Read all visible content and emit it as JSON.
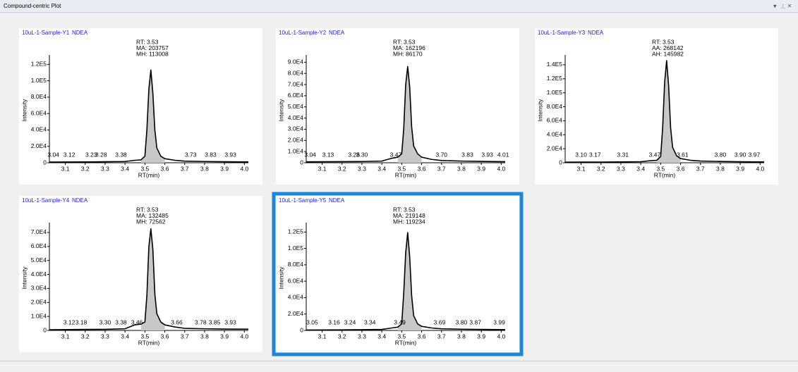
{
  "window_title": "Compound-centric Plot",
  "chart_data": [
    {
      "type": "line",
      "title": "10uL-1-Sample-Y1",
      "compound": "NDEA",
      "annotations": [
        "RT: 3.53",
        "MA: 203757",
        "MH: 113008"
      ],
      "xlabel": "RT(min)",
      "ylabel": "Intensity",
      "color": "#000000",
      "area_color": "#c8c8c8",
      "selected": false,
      "x": [
        3.02,
        3.1,
        3.2,
        3.3,
        3.4,
        3.45,
        3.48,
        3.5,
        3.51,
        3.52,
        3.53,
        3.54,
        3.55,
        3.56,
        3.58,
        3.6,
        3.65,
        3.7,
        3.8,
        3.9,
        4.0,
        4.02
      ],
      "values": [
        800,
        900,
        1000,
        1200,
        1500,
        3000,
        3500,
        8000,
        40000,
        90000,
        113008,
        85000,
        40000,
        18000,
        8000,
        5000,
        3000,
        2000,
        1500,
        1200,
        1000,
        1000
      ],
      "peak_labels": [
        3.04,
        3.12,
        3.23,
        3.28,
        3.38,
        3.73,
        3.83,
        3.93
      ],
      "xlim": [
        3.02,
        4.02
      ],
      "xticks": [
        3.1,
        3.2,
        3.3,
        3.4,
        3.5,
        3.6,
        3.7,
        3.8,
        3.9,
        {
          "value": 4,
          "label": "4.0"
        }
      ],
      "ylim": [
        0,
        128000
      ],
      "yticks": [
        0,
        {
          "value": 20000,
          "label": "2.0E4"
        },
        {
          "value": 40000,
          "label": "4.0E4"
        },
        {
          "value": 60000,
          "label": "6.0E4"
        },
        {
          "value": 80000,
          "label": "8.0E4"
        },
        {
          "value": 100000,
          "label": "1.0E5"
        },
        {
          "value": 120000,
          "label": "1.2E5"
        }
      ]
    },
    {
      "type": "line",
      "title": "10uL-1-Sample-Y2",
      "compound": "NDEA",
      "annotations": [
        "RT: 3.53",
        "MA: 162196",
        "MH: 86170"
      ],
      "xlabel": "RT(min)",
      "ylabel": "Intensity",
      "color": "#000000",
      "area_color": "#c8c8c8",
      "selected": false,
      "x": [
        3.02,
        3.1,
        3.2,
        3.3,
        3.4,
        3.45,
        3.48,
        3.5,
        3.51,
        3.52,
        3.53,
        3.54,
        3.55,
        3.56,
        3.58,
        3.6,
        3.65,
        3.7,
        3.8,
        3.9,
        4.0,
        4.02
      ],
      "values": [
        800,
        900,
        1000,
        1100,
        1500,
        4000,
        5000,
        8000,
        30000,
        70000,
        86170,
        68000,
        32000,
        15000,
        8000,
        5000,
        3000,
        2000,
        1500,
        1200,
        1000,
        1000
      ],
      "peak_labels": [
        3.04,
        3.13,
        3.26,
        {
          "value": 3.3,
          "label": "3.30"
        },
        3.47,
        {
          "value": 3.7,
          "label": "3.70"
        },
        3.83,
        3.93,
        4.01
      ],
      "xlim": [
        3.02,
        4.02
      ],
      "xticks": [
        3.1,
        3.2,
        3.3,
        3.4,
        3.5,
        3.6,
        3.7,
        3.8,
        3.9,
        {
          "value": 4,
          "label": "4.0"
        }
      ],
      "ylim": [
        0,
        94000
      ],
      "yticks": [
        0,
        {
          "value": 10000,
          "label": "1.0E4"
        },
        {
          "value": 20000,
          "label": "2.0E4"
        },
        {
          "value": 30000,
          "label": "3.0E4"
        },
        {
          "value": 40000,
          "label": "4.0E4"
        },
        {
          "value": 50000,
          "label": "5.0E4"
        },
        {
          "value": 60000,
          "label": "6.0E4"
        },
        {
          "value": 70000,
          "label": "7.0E4"
        },
        {
          "value": 80000,
          "label": "8.0E4"
        },
        {
          "value": 90000,
          "label": "9.0E4"
        }
      ]
    },
    {
      "type": "line",
      "title": "10uL-1-Sample-Y3",
      "compound": "NDEA",
      "annotations": [
        "RT: 3.53",
        "AA: 268142",
        "AH: 145982"
      ],
      "xlabel": "RT(min)",
      "ylabel": "Intensity",
      "color": "#000000",
      "area_color": "#c8c8c8",
      "selected": false,
      "x": [
        3.02,
        3.1,
        3.2,
        3.3,
        3.4,
        3.45,
        3.48,
        3.5,
        3.51,
        3.52,
        3.53,
        3.54,
        3.55,
        3.56,
        3.58,
        3.6,
        3.65,
        3.7,
        3.8,
        3.9,
        4.0,
        4.02
      ],
      "values": [
        800,
        900,
        1000,
        1200,
        1500,
        3000,
        3500,
        9000,
        50000,
        115000,
        145982,
        110000,
        50000,
        22000,
        10000,
        6000,
        3500,
        2500,
        1800,
        1400,
        1200,
        1200
      ],
      "peak_labels": [
        {
          "value": 3.1,
          "label": "3.10"
        },
        3.17,
        3.31,
        3.47,
        3.61,
        {
          "value": 3.8,
          "label": "3.80"
        },
        {
          "value": 3.9,
          "label": "3.90"
        },
        3.97
      ],
      "xlim": [
        3.02,
        4.02
      ],
      "xticks": [
        3.1,
        3.2,
        3.3,
        3.4,
        3.5,
        3.6,
        3.7,
        3.8,
        3.9,
        {
          "value": 4,
          "label": "4.0"
        }
      ],
      "ylim": [
        0,
        150000
      ],
      "yticks": [
        0,
        {
          "value": 20000,
          "label": "2.0E4"
        },
        {
          "value": 40000,
          "label": "4.0E4"
        },
        {
          "value": 60000,
          "label": "6.0E4"
        },
        {
          "value": 80000,
          "label": "8.0E4"
        },
        {
          "value": 100000,
          "label": "1.0E5"
        },
        {
          "value": 120000,
          "label": "1.2E5"
        },
        {
          "value": 140000,
          "label": "1.4E5"
        }
      ]
    },
    {
      "type": "line",
      "title": "10uL-1-Sample-Y4",
      "compound": "NDEA",
      "annotations": [
        "RT: 3.53",
        "MA: 132485",
        "MH: 72562"
      ],
      "xlabel": "RT(min)",
      "ylabel": "Intensity",
      "color": "#000000",
      "area_color": "#c8c8c8",
      "selected": false,
      "x": [
        3.02,
        3.1,
        3.2,
        3.3,
        3.4,
        3.45,
        3.48,
        3.5,
        3.51,
        3.52,
        3.53,
        3.54,
        3.55,
        3.56,
        3.58,
        3.6,
        3.65,
        3.7,
        3.8,
        3.9,
        4.0,
        4.02
      ],
      "values": [
        500,
        600,
        700,
        800,
        1200,
        4000,
        4500,
        6000,
        25000,
        60000,
        72562,
        58000,
        26000,
        12000,
        6000,
        4000,
        2500,
        1500,
        1200,
        1000,
        900,
        900
      ],
      "peak_labels": [
        3.12,
        3.18,
        {
          "value": 3.3,
          "label": "3.30"
        },
        3.38,
        3.46,
        3.66,
        3.78,
        3.85,
        3.93
      ],
      "xlim": [
        3.02,
        4.02
      ],
      "xticks": [
        3.1,
        3.2,
        3.3,
        3.4,
        3.5,
        3.6,
        3.7,
        3.8,
        3.9,
        {
          "value": 4,
          "label": "4.0"
        }
      ],
      "ylim": [
        0,
        75000
      ],
      "yticks": [
        0,
        {
          "value": 10000,
          "label": "1.0E4"
        },
        {
          "value": 20000,
          "label": "2.0E4"
        },
        {
          "value": 30000,
          "label": "3.0E4"
        },
        {
          "value": 40000,
          "label": "4.0E4"
        },
        {
          "value": 50000,
          "label": "5.0E4"
        },
        {
          "value": 60000,
          "label": "6.0E4"
        },
        {
          "value": 70000,
          "label": "7.0E4"
        }
      ]
    },
    {
      "type": "line",
      "title": "10uL-1-Sample-Y5",
      "compound": "NDEA",
      "annotations": [
        "RT: 3.53",
        "MA: 219148",
        "MH: 119234"
      ],
      "xlabel": "RT(min)",
      "ylabel": "Intensity",
      "color": "#000000",
      "area_color": "#c8c8c8",
      "selected": true,
      "x": [
        3.02,
        3.1,
        3.2,
        3.3,
        3.4,
        3.45,
        3.48,
        3.5,
        3.51,
        3.52,
        3.53,
        3.54,
        3.55,
        3.56,
        3.58,
        3.6,
        3.65,
        3.7,
        3.8,
        3.9,
        4.0,
        4.02
      ],
      "values": [
        500,
        600,
        700,
        900,
        1200,
        3000,
        4000,
        8000,
        45000,
        95000,
        119234,
        90000,
        42000,
        18000,
        8000,
        5000,
        3000,
        2000,
        1500,
        1200,
        1000,
        1000
      ],
      "peak_labels": [
        3.05,
        3.16,
        3.24,
        3.34,
        3.49,
        3.69,
        {
          "value": 3.8,
          "label": "3.80"
        },
        3.87,
        3.99
      ],
      "xlim": [
        3.02,
        4.02
      ],
      "xticks": [
        3.1,
        3.2,
        3.3,
        3.4,
        3.5,
        3.6,
        3.7,
        3.8,
        3.9,
        {
          "value": 4,
          "label": "4.0"
        }
      ],
      "ylim": [
        0,
        128000
      ],
      "yticks": [
        0,
        {
          "value": 20000,
          "label": "2.0E4"
        },
        {
          "value": 40000,
          "label": "4.0E4"
        },
        {
          "value": 60000,
          "label": "6.0E4"
        },
        {
          "value": 80000,
          "label": "8.0E4"
        },
        {
          "value": 100000,
          "label": "1.0E5"
        },
        {
          "value": 120000,
          "label": "1.2E5"
        }
      ]
    }
  ]
}
